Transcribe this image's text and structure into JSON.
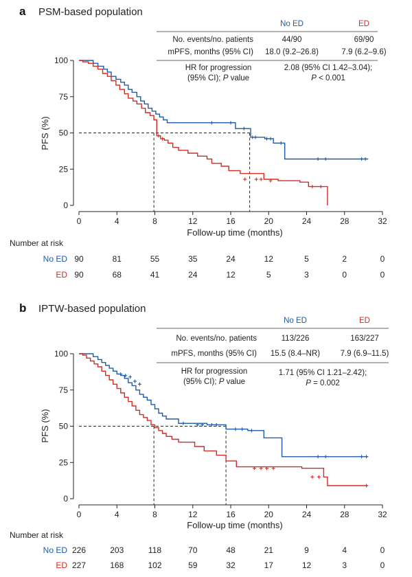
{
  "colors": {
    "no_ed": "#1f5aa6",
    "ed": "#d42a24",
    "axis": "#222222"
  },
  "chart_data": [
    {
      "type": "line",
      "panel_letter": "a",
      "title": "PSM-based population",
      "xlabel": "Follow-up time (months)",
      "ylabel": "PFS (%)",
      "xlim": [
        0,
        32
      ],
      "ylim": [
        0,
        100
      ],
      "xticks": [
        "0",
        "4",
        "8",
        "12",
        "16",
        "20",
        "24",
        "28",
        "32"
      ],
      "yticks": [
        "0",
        "25",
        "50",
        "75",
        "100"
      ],
      "table": {
        "headers": [
          "No ED",
          "ED"
        ],
        "rows": [
          {
            "label": "No. events/no. patients",
            "no_ed": "44/90",
            "ed": "69/90"
          },
          {
            "label": "mPFS, months (95% CI)",
            "no_ed": "18.0 (9.2–26.8)",
            "ed": "7.9 (6.2–9.6)"
          }
        ],
        "hr_label_1": "HR for progression",
        "hr_label_2a": "(95% CI); ",
        "hr_label_2b": "P",
        "hr_label_2c": " value",
        "hr_value_1": "2.08 (95% CI 1.42–3.04);",
        "hr_value_2a": "P",
        "hr_value_2b": " < 0.001"
      },
      "median_lines": [
        7.9,
        18.0
      ],
      "series": [
        {
          "name": "No ED",
          "color": "#1f5aa6",
          "x": [
            0,
            1.5,
            2,
            2.6,
            3,
            3.4,
            3.9,
            4.4,
            4.8,
            5.2,
            5.6,
            6.1,
            6.5,
            6.9,
            7.3,
            7.7,
            8.1,
            8.5,
            8.9,
            9.3,
            16.5,
            18.1,
            19.6,
            20.5,
            21.7,
            30.5
          ],
          "y": [
            100,
            98,
            96,
            94,
            92,
            89,
            87,
            85,
            83,
            80,
            78,
            75,
            72,
            70,
            67,
            65,
            63,
            61,
            59,
            57,
            53,
            47,
            46,
            43,
            32,
            32
          ],
          "censor_x": [
            14,
            16,
            17.4,
            18.3,
            18.6,
            19.8,
            20.2,
            21.3,
            25.2,
            26,
            29.8,
            30.2
          ],
          "censor_y": [
            57,
            57,
            53,
            47,
            47,
            46,
            46,
            43,
            32,
            32,
            32,
            32
          ]
        },
        {
          "name": "ED",
          "color": "#d42a24",
          "x": [
            0,
            0.4,
            1,
            1.5,
            2,
            2.5,
            3,
            3.4,
            3.9,
            4.3,
            4.8,
            5.2,
            5.7,
            6.1,
            6.6,
            7,
            7.5,
            7.9,
            8.2,
            8.6,
            9,
            9.4,
            9.9,
            10.5,
            11.5,
            12.5,
            13.5,
            14,
            15,
            15.8,
            17,
            19.5,
            21,
            23.3,
            24.2,
            26.2
          ],
          "y": [
            100,
            99,
            98,
            96,
            94,
            91,
            89,
            86,
            83,
            80,
            77,
            74,
            72,
            70,
            67,
            64,
            62,
            59,
            48,
            46,
            45,
            43,
            40,
            38,
            36,
            34,
            32,
            29,
            27,
            24,
            22,
            18,
            17,
            16,
            13,
            0
          ],
          "censor_x": [
            8.4,
            8.8,
            17.5,
            18.7,
            19.2,
            20.2,
            24.6,
            25.5
          ],
          "censor_y": [
            48,
            46,
            18,
            18,
            18,
            17,
            13,
            13
          ]
        }
      ],
      "risk": {
        "heading": "Number at risk",
        "times": [
          0,
          4,
          8,
          12,
          16,
          20,
          24,
          28,
          32
        ],
        "rows": [
          {
            "label": "No ED",
            "values": [
              "90",
              "81",
              "55",
              "35",
              "24",
              "12",
              "5",
              "2",
              "0"
            ]
          },
          {
            "label": "ED",
            "values": [
              "90",
              "68",
              "41",
              "24",
              "12",
              "5",
              "3",
              "0",
              "0"
            ]
          }
        ]
      }
    },
    {
      "type": "line",
      "panel_letter": "b",
      "title": "IPTW-based population",
      "xlabel": "Follow-up time (months)",
      "ylabel": "PFS (%)",
      "xlim": [
        0,
        32
      ],
      "ylim": [
        0,
        100
      ],
      "xticks": [
        "0",
        "4",
        "8",
        "12",
        "16",
        "20",
        "24",
        "28",
        "32"
      ],
      "yticks": [
        "0",
        "25",
        "50",
        "75",
        "100"
      ],
      "table": {
        "headers": [
          "No ED",
          "ED"
        ],
        "rows": [
          {
            "label": "No. events/no. patients",
            "no_ed": "113/226",
            "ed": "163/227"
          },
          {
            "label": "mPFS, months (95% CI)",
            "no_ed": "15.5 (8.4–NR)",
            "ed": "7.9 (6.9–11.5)"
          }
        ],
        "hr_label_1": "HR for progression",
        "hr_label_2a": "(95% CI); ",
        "hr_label_2b": "P",
        "hr_label_2c": " value",
        "hr_value_1": "1.71 (95% CI 1.21–2.42);",
        "hr_value_2a": "P",
        "hr_value_2b": " = 0.002"
      },
      "median_lines": [
        7.9,
        15.5
      ],
      "series": [
        {
          "name": "No ED",
          "color": "#1f5aa6",
          "x": [
            0,
            1.5,
            2,
            2.4,
            2.8,
            3.2,
            3.6,
            4,
            4.4,
            4.8,
            5.2,
            5.6,
            6,
            6.4,
            6.8,
            7.2,
            7.6,
            8,
            8.4,
            8.8,
            9.2,
            10.5,
            13.5,
            15.5,
            17.8,
            19.5,
            21.4,
            30.5
          ],
          "y": [
            100,
            98,
            96,
            94,
            92,
            90,
            88,
            86,
            85,
            83,
            80,
            78,
            75,
            72,
            70,
            68,
            65,
            62,
            59,
            57,
            55,
            52,
            51,
            48,
            47,
            42,
            29,
            29
          ],
          "censor_x": [
            4.4,
            4.9,
            5.4,
            5.9,
            6.4,
            11,
            12.5,
            13,
            14,
            14.5,
            16.5,
            17.2,
            18.2,
            25.2,
            26,
            29.8,
            30.3
          ],
          "censor_y": [
            86,
            85,
            84,
            81,
            79,
            52,
            51,
            51,
            51,
            51,
            48,
            48,
            47,
            29,
            29,
            29,
            29
          ]
        },
        {
          "name": "ED",
          "color": "#d42a24",
          "x": [
            0,
            0.4,
            0.8,
            1.2,
            1.6,
            2,
            2.4,
            2.8,
            3.2,
            3.6,
            4,
            4.4,
            4.8,
            5.2,
            5.6,
            6,
            6.4,
            6.8,
            7.2,
            7.6,
            8,
            8.4,
            8.8,
            9.2,
            9.8,
            10.5,
            12.2,
            13.2,
            14.5,
            15.5,
            16.6,
            23.5,
            25.8,
            26.2,
            30.5
          ],
          "y": [
            100,
            99,
            97,
            95,
            93,
            91,
            88,
            85,
            82,
            79,
            76,
            73,
            70,
            67,
            64,
            61,
            58,
            56,
            54,
            51,
            49,
            47,
            45,
            43,
            41,
            39,
            36,
            33,
            30,
            26,
            22,
            21,
            15,
            9,
            9
          ],
          "censor_x": [
            18.5,
            19.2,
            19.8,
            20.5,
            24.6,
            25.3,
            30.3
          ],
          "censor_y": [
            21,
            21,
            21,
            21,
            15,
            15,
            9
          ]
        }
      ],
      "risk": {
        "heading": "Number at risk",
        "times": [
          0,
          4,
          8,
          12,
          16,
          20,
          24,
          28,
          32
        ],
        "rows": [
          {
            "label": "No ED",
            "values": [
              "226",
              "203",
              "118",
              "70",
              "48",
              "21",
              "9",
              "4",
              "0"
            ]
          },
          {
            "label": "ED",
            "values": [
              "227",
              "168",
              "102",
              "59",
              "32",
              "17",
              "12",
              "3",
              "0"
            ]
          }
        ]
      }
    }
  ]
}
